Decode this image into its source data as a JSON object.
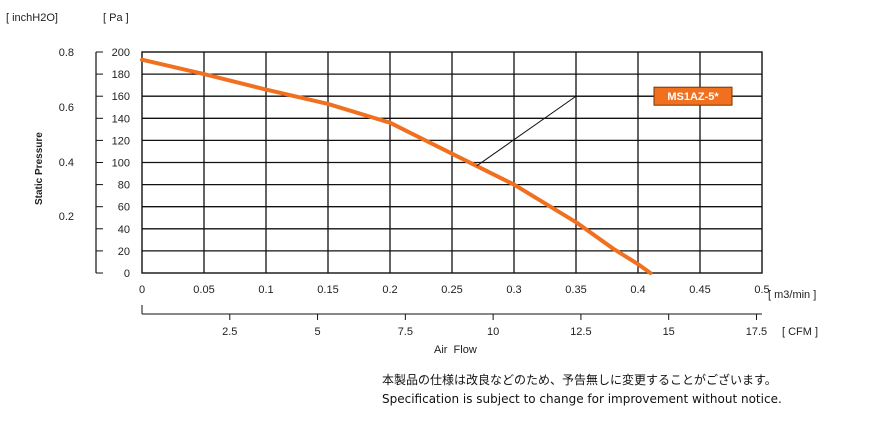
{
  "chart_data": {
    "type": "line",
    "ylabel": "Static Pressure",
    "xlabel": "Air  Flow",
    "units": {
      "y_primary": "[ Pa ]",
      "y_secondary": "[ inchH2O]",
      "x_primary": "[ m3/min ]",
      "x_secondary": "[ CFM ]"
    },
    "x_ticks": [
      "0",
      "0.05",
      "0.1",
      "0.15",
      "0.2",
      "0.25",
      "0.3",
      "0.35",
      "0.4",
      "0.45",
      "0.5"
    ],
    "y_ticks": [
      "0",
      "20",
      "40",
      "60",
      "80",
      "100",
      "120",
      "140",
      "160",
      "180",
      "200"
    ],
    "y2_ticks": [
      "0.2",
      "0.4",
      "0.6",
      "0.8"
    ],
    "x2_ticks": [
      "2.5",
      "5",
      "7.5",
      "10",
      "12.5",
      "15",
      "17.5"
    ],
    "xlim": [
      0,
      0.5
    ],
    "ylim": [
      0,
      200
    ],
    "grid": true,
    "series": [
      {
        "name": "MS1AZ-5*",
        "color": "#F07020",
        "x": [
          0,
          0.05,
          0.1,
          0.15,
          0.2,
          0.25,
          0.3,
          0.35,
          0.38,
          0.4,
          0.41
        ],
        "y": [
          193,
          180,
          166,
          153,
          136,
          108,
          80,
          46,
          22,
          8,
          0
        ]
      }
    ],
    "annotation": {
      "label": "MS1AZ-5*",
      "point": [
        0.27,
        97
      ],
      "elbow": [
        0.35,
        160
      ],
      "color": "#F07020"
    }
  },
  "notice": {
    "jp": "本製品の仕様は改良などのため、予告無しに変更することがございます。",
    "en": "Specification is subject to change for improvement without notice."
  }
}
